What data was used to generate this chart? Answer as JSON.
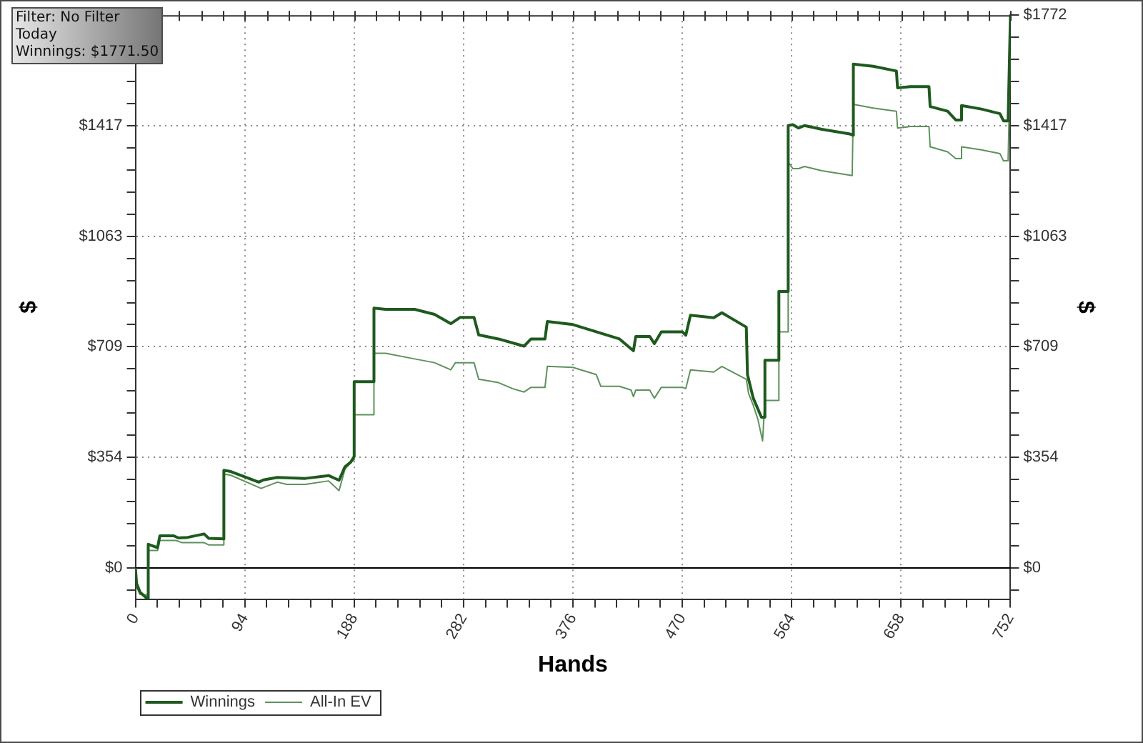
{
  "chart_data": {
    "type": "line",
    "xlabel": "Hands",
    "ylabel": "$",
    "y2label": "$",
    "annotations": [
      "Filter: No Filter",
      "Today",
      "Winnings: $1771.50"
    ],
    "xlim": [
      0,
      752
    ],
    "xticks": [
      0,
      {
        "value": 18.8,
        "label": null
      },
      {
        "value": 37.6,
        "label": null
      },
      {
        "value": 56.4,
        "label": null
      },
      {
        "value": 75.2,
        "label": null
      },
      94,
      {
        "value": 112.8,
        "label": null
      },
      {
        "value": 131.6,
        "label": null
      },
      {
        "value": 150.4,
        "label": null
      },
      {
        "value": 169.2,
        "label": null
      },
      188,
      {
        "value": 206.8,
        "label": null
      },
      {
        "value": 225.6,
        "label": null
      },
      {
        "value": 244.4,
        "label": null
      },
      {
        "value": 263.2,
        "label": null
      },
      282,
      {
        "value": 300.8,
        "label": null
      },
      {
        "value": 319.6,
        "label": null
      },
      {
        "value": 338.4,
        "label": null
      },
      {
        "value": 357.2,
        "label": null
      },
      376,
      {
        "value": 394.8,
        "label": null
      },
      {
        "value": 413.6,
        "label": null
      },
      {
        "value": 432.4,
        "label": null
      },
      {
        "value": 451.2,
        "label": null
      },
      470,
      {
        "value": 488.8,
        "label": null
      },
      {
        "value": 507.6,
        "label": null
      },
      {
        "value": 526.4,
        "label": null
      },
      {
        "value": 545.2,
        "label": null
      },
      564,
      {
        "value": 582.8,
        "label": null
      },
      {
        "value": 601.6,
        "label": null
      },
      {
        "value": 620.4,
        "label": null
      },
      {
        "value": 639.2,
        "label": null
      },
      658,
      {
        "value": 676.8,
        "label": null
      },
      {
        "value": 695.6,
        "label": null
      },
      {
        "value": 714.4,
        "label": null
      },
      {
        "value": 733.2,
        "label": null
      },
      752
    ],
    "ylim": [
      -100,
      1772
    ],
    "yticks": [
      {
        "value": -71,
        "label": null
      },
      {
        "value": 0,
        "label": "$0"
      },
      {
        "value": 71,
        "label": null
      },
      {
        "value": 142,
        "label": null
      },
      {
        "value": 213,
        "label": null
      },
      {
        "value": 283,
        "label": null
      },
      {
        "value": 354,
        "label": "$354"
      },
      {
        "value": 425,
        "label": null
      },
      {
        "value": 496,
        "label": null
      },
      {
        "value": 567,
        "label": null
      },
      {
        "value": 638,
        "label": null
      },
      {
        "value": 709,
        "label": "$709"
      },
      {
        "value": 780,
        "label": null
      },
      {
        "value": 850,
        "label": null
      },
      {
        "value": 921,
        "label": null
      },
      {
        "value": 992,
        "label": null
      },
      {
        "value": 1063,
        "label": "$1063"
      },
      {
        "value": 1134,
        "label": null
      },
      {
        "value": 1205,
        "label": null
      },
      {
        "value": 1276,
        "label": null
      },
      {
        "value": 1346,
        "label": null
      },
      {
        "value": 1417,
        "label": "$1417"
      },
      {
        "value": 1488,
        "label": null
      },
      {
        "value": 1559,
        "label": null
      },
      {
        "value": 1630,
        "label": null
      }
    ],
    "y2lim": [
      -100,
      1772
    ],
    "y2ticks": [
      {
        "value": -71,
        "label": null
      },
      {
        "value": 0,
        "label": "$0"
      },
      {
        "value": 71,
        "label": null
      },
      {
        "value": 142,
        "label": null
      },
      {
        "value": 213,
        "label": null
      },
      {
        "value": 283,
        "label": null
      },
      {
        "value": 354,
        "label": "$354"
      },
      {
        "value": 425,
        "label": null
      },
      {
        "value": 496,
        "label": null
      },
      {
        "value": 567,
        "label": null
      },
      {
        "value": 638,
        "label": null
      },
      {
        "value": 709,
        "label": "$709"
      },
      {
        "value": 780,
        "label": null
      },
      {
        "value": 850,
        "label": null
      },
      {
        "value": 921,
        "label": null
      },
      {
        "value": 992,
        "label": null
      },
      {
        "value": 1063,
        "label": "$1063"
      },
      {
        "value": 1134,
        "label": null
      },
      {
        "value": 1205,
        "label": null
      },
      {
        "value": 1276,
        "label": null
      },
      {
        "value": 1346,
        "label": null
      },
      {
        "value": 1417,
        "label": "$1417"
      },
      {
        "value": 1488,
        "label": null
      },
      {
        "value": 1559,
        "label": null
      },
      {
        "value": 1630,
        "label": null
      },
      {
        "value": 1701,
        "label": null
      },
      {
        "value": 1772,
        "label": "$1772"
      }
    ],
    "grid": true,
    "legend": "bottom left",
    "marker": "none",
    "ref_lines": [
      {
        "axis": "y",
        "value": 0,
        "color": "#000000"
      }
    ],
    "series": [
      {
        "name": "Winnings",
        "color": "#1e5a1e",
        "x": [
          0,
          1,
          4,
          10,
          11,
          11,
          19,
          21,
          33,
          37,
          45,
          59,
          63,
          76,
          76,
          82,
          106,
          110,
          122,
          146,
          166,
          175,
          180,
          185,
          188,
          188,
          205,
          205,
          215,
          240,
          257,
          271,
          279,
          291,
          295,
          312,
          334,
          340,
          352,
          354,
          376,
          396,
          416,
          428,
          430,
          442,
          446,
          452,
          470,
          473,
          477,
          497,
          504,
          525,
          526,
          531,
          538,
          541,
          541,
          553,
          553,
          561,
          561,
          565,
          570,
          575,
          590,
          614,
          617,
          617,
          634,
          654,
          655,
          666,
          682,
          683,
          698,
          705,
          710,
          710,
          727,
          743,
          746,
          750,
          752
        ],
        "values": [
          0,
          -50,
          -78,
          -98,
          -98,
          76,
          65,
          103,
          103,
          96,
          98,
          109,
          95,
          93,
          313,
          309,
          275,
          282,
          290,
          287,
          296,
          281,
          324,
          339,
          357,
          597,
          597,
          833,
          829,
          829,
          813,
          783,
          803,
          803,
          747,
          734,
          711,
          734,
          734,
          790,
          780,
          757,
          734,
          696,
          742,
          742,
          719,
          757,
          757,
          746,
          810,
          802,
          818,
          772,
          620,
          544,
          483,
          483,
          666,
          666,
          886,
          886,
          1418,
          1421,
          1410,
          1418,
          1406,
          1391,
          1387,
          1615,
          1608,
          1593,
          1539,
          1543,
          1543,
          1479,
          1464,
          1436,
          1436,
          1482,
          1471,
          1456,
          1433,
          1433,
          1772
        ]
      },
      {
        "name": "All-In EV",
        "color": "#5e915e",
        "x": [
          0,
          1,
          4,
          11,
          11,
          19,
          21,
          35,
          40,
          59,
          63,
          76,
          76,
          82,
          108,
          122,
          130,
          146,
          166,
          175,
          180,
          185,
          188,
          188,
          205,
          205,
          215,
          240,
          257,
          271,
          275,
          291,
          295,
          312,
          324,
          334,
          340,
          352,
          354,
          376,
          396,
          400,
          416,
          426,
          428,
          430,
          442,
          446,
          452,
          470,
          473,
          477,
          497,
          504,
          525,
          527,
          531,
          535,
          539,
          541,
          553,
          553,
          561,
          561,
          565,
          570,
          575,
          590,
          616,
          617,
          634,
          654,
          655,
          666,
          682,
          683,
          698,
          705,
          710,
          710,
          727,
          743,
          746,
          750,
          752
        ],
        "values": [
          0,
          -60,
          -85,
          -87,
          56,
          56,
          88,
          88,
          81,
          81,
          74,
          74,
          301,
          297,
          255,
          275,
          268,
          268,
          279,
          248,
          316,
          338,
          347,
          491,
          491,
          688,
          688,
          670,
          658,
          635,
          658,
          658,
          605,
          594,
          575,
          564,
          579,
          579,
          646,
          643,
          620,
          582,
          582,
          570,
          549,
          570,
          570,
          544,
          579,
          579,
          575,
          635,
          628,
          646,
          605,
          559,
          521,
          476,
          407,
          537,
          537,
          757,
          757,
          1301,
          1280,
          1280,
          1287,
          1273,
          1258,
          1486,
          1474,
          1464,
          1410,
          1415,
          1415,
          1350,
          1334,
          1312,
          1312,
          1350,
          1340,
          1328,
          1305,
          1305,
          1643
        ]
      }
    ]
  }
}
